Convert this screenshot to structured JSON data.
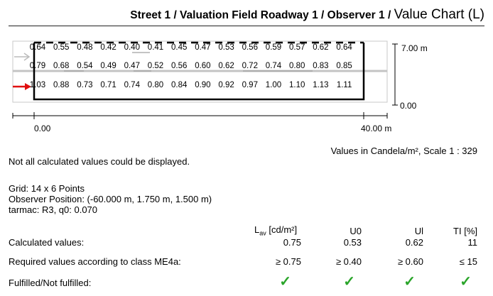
{
  "header": {
    "path": "Street 1 / Valuation Field Roadway 1 / Observer 1 / ",
    "chart_name": "Value Chart (L)"
  },
  "diagram": {
    "height_label": "7.00 m",
    "bottom_label": "0.00",
    "x_start_label": "0.00",
    "x_end_label": "40.00 m",
    "rows": [
      [
        "0.64",
        "0.55",
        "0.48",
        "0.42",
        "0.40",
        "0.41",
        "0.45",
        "0.47",
        "0.53",
        "0.56",
        "0.59",
        "0.57",
        "0.62",
        "0.64"
      ],
      [
        "0.79",
        "0.68",
        "0.54",
        "0.49",
        "0.47",
        "0.52",
        "0.56",
        "0.60",
        "0.62",
        "0.72",
        "0.74",
        "0.80",
        "0.83",
        "0.85"
      ],
      [
        "1.03",
        "0.88",
        "0.73",
        "0.71",
        "0.74",
        "0.80",
        "0.84",
        "0.90",
        "0.92",
        "0.97",
        "1.00",
        "1.10",
        "1.13",
        "1.11"
      ]
    ]
  },
  "units_note": "Values in Candela/m², Scale 1 : 329",
  "warning": "Not all calculated values could be displayed.",
  "info": {
    "grid": "Grid: 14 x 6 Points",
    "observer": "Observer Position: (-60.000 m, 1.750 m, 1.500 m)",
    "tarmac": "tarmac: R3, q0: 0.070"
  },
  "table": {
    "headers": {
      "lav_main": "L",
      "lav_sub": "av",
      "lav_unit": " [cd/m²]",
      "u0": "U0",
      "ul": "Ul",
      "ti": "TI [%]"
    },
    "calculated": {
      "label": "Calculated values:",
      "lav": "0.75",
      "u0": "0.53",
      "ul": "0.62",
      "ti": "11"
    },
    "required": {
      "label": "Required values according to class ME4a:",
      "lav": "≥ 0.75",
      "u0": "≥ 0.40",
      "ul": "≥ 0.60",
      "ti": "≤ 15"
    },
    "fulfilled": {
      "label": "Fulfilled/Not fulfilled:",
      "lav": "✓",
      "u0": "✓",
      "ul": "✓",
      "ti": "✓"
    }
  }
}
